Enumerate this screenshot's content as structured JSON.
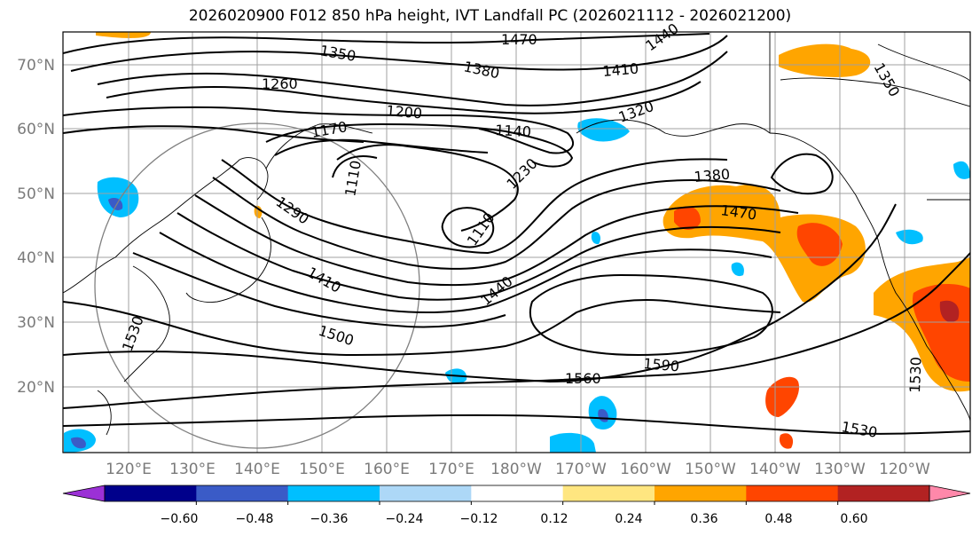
{
  "title": "2026020900 F012 850 hPa height, IVT Landfall PC (2026021112 - 2026021200)",
  "lat_labels": [
    "70°N",
    "60°N",
    "50°N",
    "40°N",
    "30°N",
    "20°N"
  ],
  "lon_labels": [
    "120°E",
    "130°E",
    "140°E",
    "150°E",
    "160°E",
    "170°E",
    "180°W",
    "170°W",
    "160°W",
    "150°W",
    "140°W",
    "130°W",
    "120°W"
  ],
  "contour_labels": [
    "1470",
    "1440",
    "1350",
    "1380",
    "1410",
    "1320",
    "1260",
    "1200",
    "1170",
    "1140",
    "1110",
    "1230",
    "1290",
    "1110",
    "1380",
    "1470",
    "1410",
    "1440",
    "1500",
    "1530",
    "1560",
    "1590",
    "1530",
    "1530",
    "1350"
  ],
  "colorbar": {
    "ticks": [
      "−0.60",
      "−0.48",
      "−0.36",
      "−0.24",
      "−0.12",
      "0.12",
      "0.24",
      "0.36",
      "0.48",
      "0.60"
    ],
    "colors": [
      "#9b30d6",
      "#00008b",
      "#3a5bc7",
      "#00bfff",
      "#add8f7",
      "#ffffff",
      "#ffe680",
      "#ffa500",
      "#ff4500",
      "#b22222",
      "#ff88aa"
    ]
  }
}
